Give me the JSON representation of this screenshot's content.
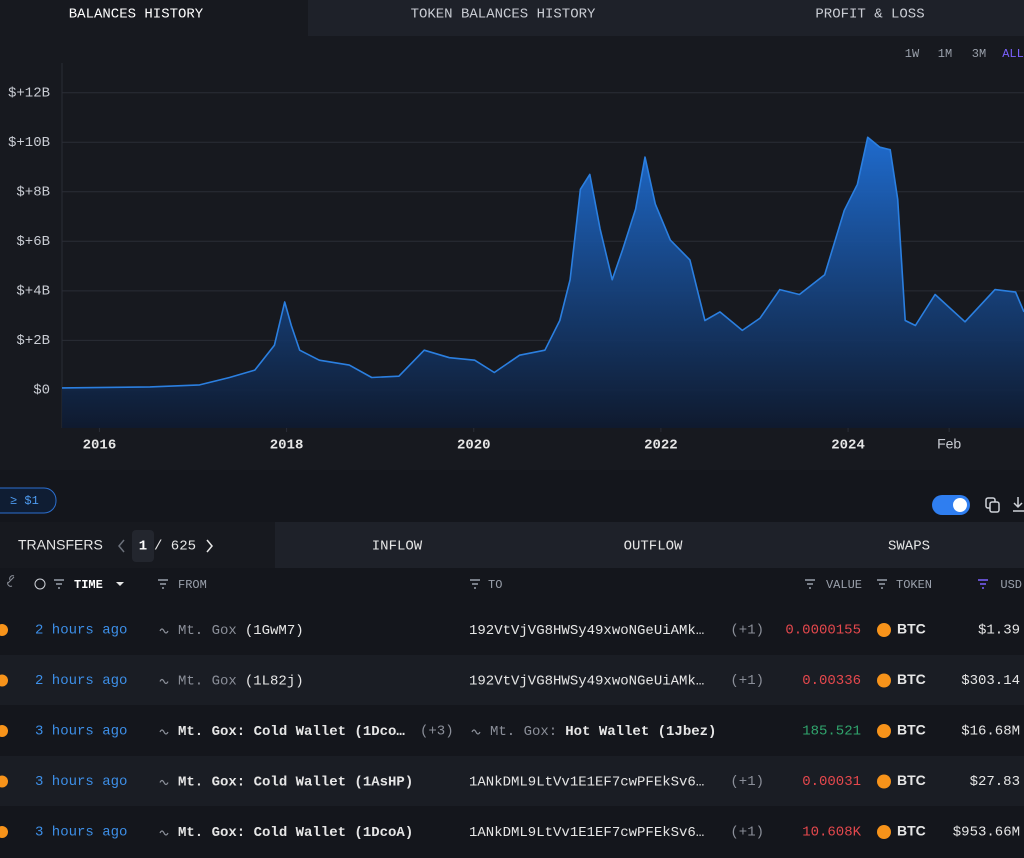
{
  "tabs": [
    "BALANCES HISTORY",
    "TOKEN BALANCES HISTORY",
    "PROFIT & LOSS"
  ],
  "ranges": [
    "1W",
    "1M",
    "3M",
    "ALL"
  ],
  "chart_data": {
    "type": "area",
    "color": "#2b7fe0",
    "x": [
      2015.6,
      2016.54,
      2017.07,
      2017.39,
      2017.66,
      2017.87,
      2017.98,
      2018.05,
      2018.14,
      2018.35,
      2018.67,
      2018.91,
      2019.2,
      2019.47,
      2019.74,
      2020.01,
      2020.22,
      2020.49,
      2020.76,
      2020.92,
      2021.03,
      2021.14,
      2021.24,
      2021.35,
      2021.48,
      2021.59,
      2021.73,
      2021.83,
      2021.94,
      2022.1,
      2022.31,
      2022.47,
      2022.63,
      2022.87,
      2023.06,
      2023.27,
      2023.48,
      2023.75,
      2023.96,
      2024.1,
      2024.21,
      2024.34,
      2024.45,
      2024.53,
      2024.61,
      2024.72,
      2024.93,
      2025.25,
      2025.57,
      2025.79,
      2025.88
    ],
    "values": [
      0.08,
      0.12,
      0.2,
      0.5,
      0.8,
      1.8,
      3.55,
      2.6,
      1.6,
      1.2,
      1.0,
      0.5,
      0.55,
      1.6,
      1.3,
      1.2,
      0.7,
      1.4,
      1.6,
      2.8,
      4.45,
      8.1,
      8.7,
      6.5,
      4.45,
      5.65,
      7.3,
      9.4,
      7.5,
      6.05,
      5.25,
      2.8,
      3.15,
      2.4,
      2.9,
      4.05,
      3.85,
      4.65,
      7.25,
      8.3,
      10.2,
      9.8,
      9.7,
      7.7,
      2.8,
      2.6,
      3.85,
      2.75,
      4.05,
      3.95,
      3.15
    ],
    "xlim": [
      2015.6,
      2025.88
    ],
    "xticks": [
      2016,
      2018,
      2020,
      2022,
      2024,
      {
        "value": 2025.08,
        "label": "Feb"
      }
    ],
    "ylim": [
      -1.54,
      13.2
    ],
    "yticks": [
      {
        "value": 0,
        "label": "$0"
      },
      {
        "value": 2,
        "label": "$+2B"
      },
      {
        "value": 4,
        "label": "$+4B"
      },
      {
        "value": 6,
        "label": "$+6B"
      },
      {
        "value": 8,
        "label": "$+8B"
      },
      {
        "value": 10,
        "label": "$+10B"
      },
      {
        "value": 12,
        "label": "$+12B"
      }
    ],
    "grid": true
  },
  "filter": "≥ $1",
  "transfer_tabs": [
    "TRANSFERS",
    "INFLOW",
    "OUTFLOW",
    "SWAPS"
  ],
  "pagination": [
    "1",
    "/ 625"
  ],
  "columns": [
    "TIME",
    "FROM",
    "TO",
    "VALUE",
    "TOKEN",
    "USD"
  ],
  "rows": [
    {
      "time": "2 hours ago",
      "from": [
        {
          "text": "Mt. Gox",
          "muted": true
        },
        {
          "text": "(1GwM7)"
        }
      ],
      "to": [
        {
          "text": "192VtVjVG8HWSy49xwoNGeUiAMk…"
        }
      ],
      "to_extra": "(+1)",
      "value": "0.0000155",
      "value_color": "#e5484d",
      "token": "BTC",
      "usd": "$1.39"
    },
    {
      "time": "2 hours ago",
      "from": [
        {
          "text": "Mt. Gox",
          "muted": true
        },
        {
          "text": "(1L82j)"
        }
      ],
      "to": [
        {
          "text": "192VtVjVG8HWSy49xwoNGeUiAMk…"
        }
      ],
      "to_extra": "(+1)",
      "value": "0.00336",
      "value_color": "#e5484d",
      "token": "BTC",
      "usd": "$303.14"
    },
    {
      "time": "3 hours ago",
      "from": [
        {
          "text": "Mt. Gox: Cold Wallet (1Dco…"
        }
      ],
      "from_extra": "(+3)",
      "to": [
        {
          "text": "Mt. Gox:",
          "muted": true
        },
        {
          "text": "Hot Wallet (1Jbez)"
        }
      ],
      "value": "185.521",
      "value_color": "#30a46c",
      "token": "BTC",
      "usd": "$16.68M"
    },
    {
      "time": "3 hours ago",
      "from": [
        {
          "text": "Mt. Gox: Cold Wallet (1AsHP)"
        }
      ],
      "to": [
        {
          "text": "1ANkDML9LtVv1E1EF7cwPFEkSv6…"
        }
      ],
      "to_extra": "(+1)",
      "value": "0.00031",
      "value_color": "#e5484d",
      "token": "BTC",
      "usd": "$27.83"
    },
    {
      "time": "3 hours ago",
      "from": [
        {
          "text": "Mt. Gox: Cold Wallet (1DcoA)"
        }
      ],
      "to": [
        {
          "text": "1ANkDML9LtVv1E1EF7cwPFEkSv6…"
        }
      ],
      "to_extra": "(+1)",
      "value": "10.608K",
      "value_color": "#e5484d",
      "token": "BTC",
      "usd": "$953.66M"
    }
  ]
}
